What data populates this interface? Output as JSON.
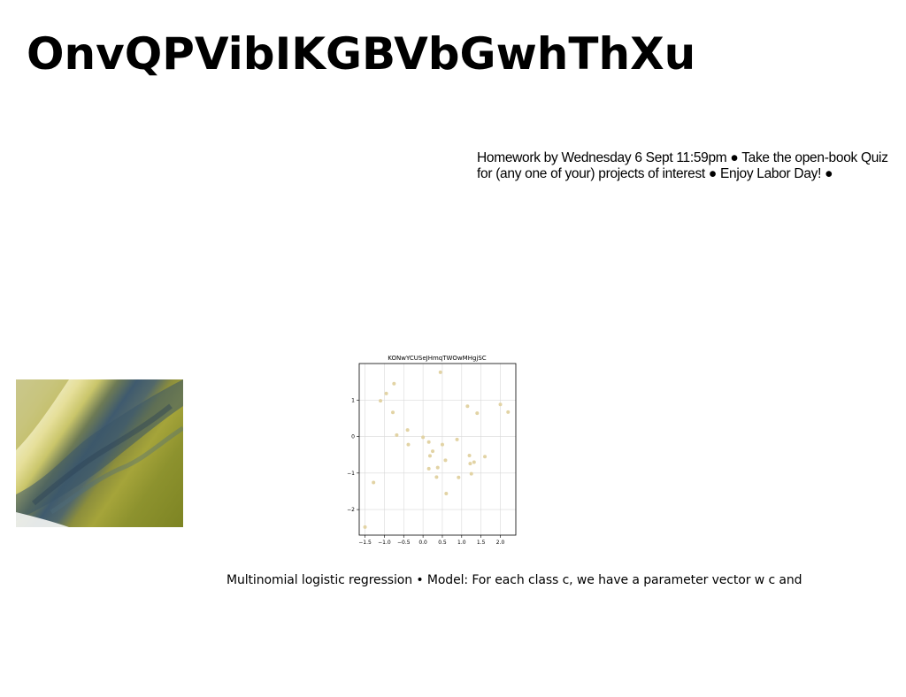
{
  "slide": {
    "title": "OnvQPVibIKGBVbGwhThXu",
    "notes": "Homework by Wednesday 6 Sept 11:59pm ● Take the open-book Quiz for (any one of your) projects of interest ● Enjoy Labor Day! ●",
    "caption": "Multinomial logistic regression • Model: For each class c, we have a parameter vector w c and"
  },
  "chart_data": {
    "type": "scatter",
    "title": "KONwYCUSeJHmqTWOwMHgjSC",
    "xlabel": "",
    "ylabel": "",
    "xlim": [
      -1.65,
      2.4
    ],
    "ylim": [
      -2.7,
      2.0
    ],
    "xticks": [
      -1.5,
      -1.0,
      -0.5,
      0.0,
      0.5,
      1.0,
      1.5,
      2.0
    ],
    "xtick_labels": [
      "−1.5",
      "−1.0",
      "−0.5",
      "0.0",
      "0.5",
      "1.0",
      "1.5",
      "2.0"
    ],
    "yticks": [
      1,
      0,
      -1,
      -2
    ],
    "ytick_labels": [
      "1",
      "0",
      "−1",
      "−2"
    ],
    "grid": true,
    "point_color": "#e2d3a4",
    "points": [
      {
        "x": 0.45,
        "y": 1.76
      },
      {
        "x": -0.75,
        "y": 1.45
      },
      {
        "x": -0.95,
        "y": 1.18
      },
      {
        "x": -1.1,
        "y": 0.98
      },
      {
        "x": -0.78,
        "y": 0.66
      },
      {
        "x": 1.15,
        "y": 0.83
      },
      {
        "x": 1.4,
        "y": 0.64
      },
      {
        "x": 2.0,
        "y": 0.88
      },
      {
        "x": 2.2,
        "y": 0.67
      },
      {
        "x": -0.68,
        "y": 0.04
      },
      {
        "x": -0.4,
        "y": 0.18
      },
      {
        "x": 0.0,
        "y": -0.02
      },
      {
        "x": 0.15,
        "y": -0.15
      },
      {
        "x": -0.38,
        "y": -0.22
      },
      {
        "x": 0.5,
        "y": -0.22
      },
      {
        "x": 0.88,
        "y": -0.08
      },
      {
        "x": 0.25,
        "y": -0.4
      },
      {
        "x": 0.18,
        "y": -0.53
      },
      {
        "x": 0.58,
        "y": -0.65
      },
      {
        "x": 1.2,
        "y": -0.52
      },
      {
        "x": 1.6,
        "y": -0.55
      },
      {
        "x": 1.32,
        "y": -0.7
      },
      {
        "x": 1.22,
        "y": -0.74
      },
      {
        "x": 0.15,
        "y": -0.88
      },
      {
        "x": 0.38,
        "y": -0.85
      },
      {
        "x": 1.25,
        "y": -1.02
      },
      {
        "x": 0.35,
        "y": -1.11
      },
      {
        "x": 0.92,
        "y": -1.12
      },
      {
        "x": -1.28,
        "y": -1.26
      },
      {
        "x": 0.6,
        "y": -1.56
      },
      {
        "x": -1.5,
        "y": -2.48
      }
    ]
  }
}
